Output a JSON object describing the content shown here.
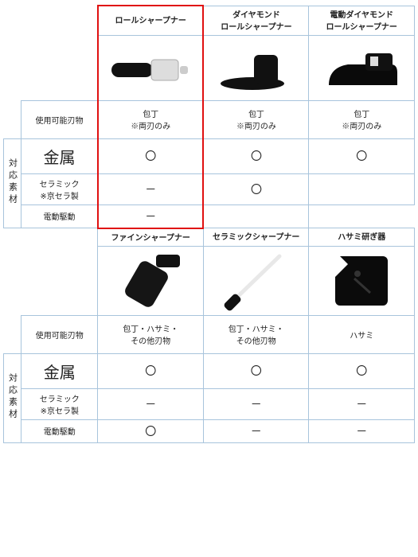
{
  "colors": {
    "border": "#a8c4dc",
    "highlight": "#e01010",
    "text": "#222222",
    "bg": "#ffffff"
  },
  "sidelabel": "対応素材",
  "rows": {
    "r1": "使用可能刃物",
    "r2": "金属",
    "r3": "セラミック\n※京セラ製",
    "r4": "電動駆動"
  },
  "top": {
    "products": [
      {
        "name": "ロールシャープナー",
        "usable": "包丁\n※両刃のみ",
        "metal": "〇",
        "ceramic": "－",
        "motor": "－",
        "highlight": true
      },
      {
        "name": "ダイヤモンド\nロールシャープナー",
        "usable": "包丁\n※両刃のみ",
        "metal": "〇",
        "ceramic": "〇",
        "motor": ""
      },
      {
        "name": "電動ダイヤモンド\nロールシャープナー",
        "usable": "包丁\n※両刃のみ",
        "metal": "〇",
        "ceramic": "",
        "motor": ""
      }
    ]
  },
  "bottom": {
    "products": [
      {
        "name": "ファインシャープナー",
        "usable": "包丁・ハサミ・\nその他刃物",
        "metal": "〇",
        "ceramic": "－",
        "motor": "〇"
      },
      {
        "name": "セラミックシャープナー",
        "usable": "包丁・ハサミ・\nその他刃物",
        "metal": "〇",
        "ceramic": "－",
        "motor": "－"
      },
      {
        "name": "ハサミ研ぎ器",
        "usable": "ハサミ",
        "metal": "〇",
        "ceramic": "－",
        "motor": "－"
      }
    ]
  }
}
